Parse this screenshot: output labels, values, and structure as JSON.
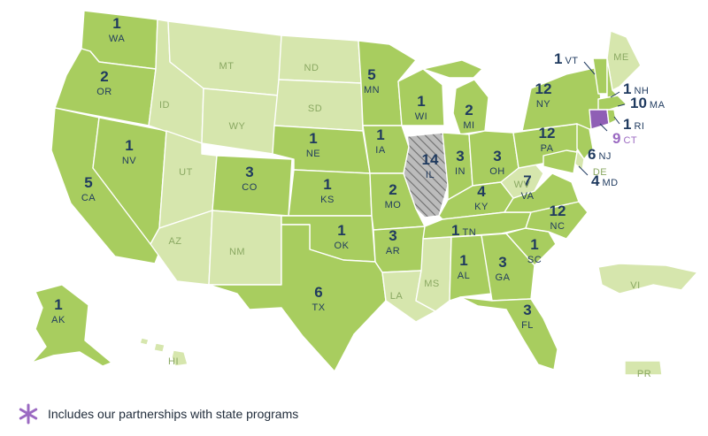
{
  "colors": {
    "active": "#a8cd5f",
    "inactive": "#d6e6ad",
    "partnership": "#8f5fb5",
    "label": "#1f3a5f",
    "partnership_label": "#9b6ac2"
  },
  "states": [
    {
      "abbr": "WA",
      "count": "1"
    },
    {
      "abbr": "OR",
      "count": "2"
    },
    {
      "abbr": "CA",
      "count": "5"
    },
    {
      "abbr": "NV",
      "count": "1"
    },
    {
      "abbr": "ID",
      "count": ""
    },
    {
      "abbr": "MT",
      "count": ""
    },
    {
      "abbr": "WY",
      "count": ""
    },
    {
      "abbr": "UT",
      "count": ""
    },
    {
      "abbr": "AZ",
      "count": ""
    },
    {
      "abbr": "CO",
      "count": "3"
    },
    {
      "abbr": "NM",
      "count": ""
    },
    {
      "abbr": "ND",
      "count": ""
    },
    {
      "abbr": "SD",
      "count": ""
    },
    {
      "abbr": "NE",
      "count": "1"
    },
    {
      "abbr": "KS",
      "count": "1"
    },
    {
      "abbr": "OK",
      "count": "1"
    },
    {
      "abbr": "TX",
      "count": "6"
    },
    {
      "abbr": "MN",
      "count": "5"
    },
    {
      "abbr": "IA",
      "count": "1"
    },
    {
      "abbr": "MO",
      "count": "2"
    },
    {
      "abbr": "AR",
      "count": "3"
    },
    {
      "abbr": "LA",
      "count": ""
    },
    {
      "abbr": "WI",
      "count": "1"
    },
    {
      "abbr": "IL",
      "count": "14"
    },
    {
      "abbr": "MI",
      "count": "2"
    },
    {
      "abbr": "IN",
      "count": "3"
    },
    {
      "abbr": "OH",
      "count": "3"
    },
    {
      "abbr": "KY",
      "count": "4"
    },
    {
      "abbr": "TN",
      "count": "1"
    },
    {
      "abbr": "MS",
      "count": ""
    },
    {
      "abbr": "AL",
      "count": "1"
    },
    {
      "abbr": "GA",
      "count": "3"
    },
    {
      "abbr": "FL",
      "count": "3"
    },
    {
      "abbr": "SC",
      "count": "1"
    },
    {
      "abbr": "NC",
      "count": "12"
    },
    {
      "abbr": "VA",
      "count": "7"
    },
    {
      "abbr": "WV",
      "count": ""
    },
    {
      "abbr": "PA",
      "count": "12"
    },
    {
      "abbr": "NY",
      "count": "12"
    },
    {
      "abbr": "VT",
      "count": "1"
    },
    {
      "abbr": "ME",
      "count": ""
    },
    {
      "abbr": "NH",
      "count": "1"
    },
    {
      "abbr": "MA",
      "count": "10"
    },
    {
      "abbr": "RI",
      "count": "1"
    },
    {
      "abbr": "CT",
      "count": "9"
    },
    {
      "abbr": "NJ",
      "count": "6"
    },
    {
      "abbr": "DE",
      "count": ""
    },
    {
      "abbr": "MD",
      "count": "4"
    },
    {
      "abbr": "AK",
      "count": "1"
    },
    {
      "abbr": "HI",
      "count": ""
    },
    {
      "abbr": "VI",
      "count": ""
    },
    {
      "abbr": "PR",
      "count": ""
    }
  ],
  "legend": {
    "icon": "asterisk-icon",
    "text": "Includes our partnerships with state programs"
  }
}
